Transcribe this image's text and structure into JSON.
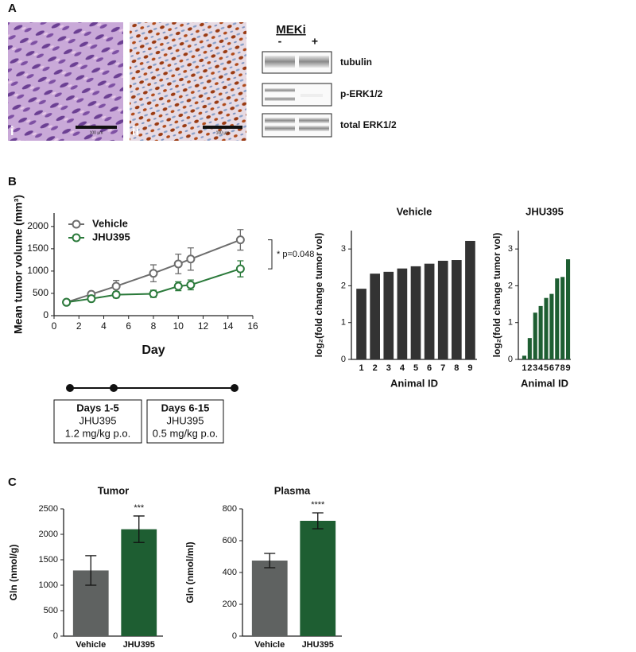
{
  "panel_labels": [
    "A",
    "B",
    "C"
  ],
  "panel_a": {
    "image_labels": [
      "i",
      "ii"
    ],
    "scale_bar": "100 µm",
    "blot": {
      "title": "MEKi",
      "lanes": [
        "-",
        "+"
      ],
      "rows": [
        "tubulin",
        "p-ERK1/2",
        "total ERK1/2"
      ]
    }
  },
  "dosing": {
    "phases": [
      {
        "days": "Days 1-5",
        "drug": "JHU395",
        "dose": "1.2 mg/kg p.o."
      },
      {
        "days": "Days 6-15",
        "drug": "JHU395",
        "dose": "0.5 mg/kg p.o."
      }
    ]
  },
  "chart_data": [
    {
      "type": "line",
      "x_label": "Day",
      "y_label": "Mean tumor volume (mm³)",
      "x": [
        1,
        3,
        5,
        8,
        10,
        11,
        15
      ],
      "series": [
        {
          "name": "Vehicle",
          "color": "#6d6d6d",
          "values": [
            300,
            480,
            660,
            950,
            1160,
            1270,
            1700
          ],
          "errors": [
            20,
            50,
            130,
            190,
            220,
            250,
            230
          ]
        },
        {
          "name": "JHU395",
          "color": "#2b7a3b",
          "values": [
            300,
            380,
            470,
            490,
            660,
            690,
            1050
          ],
          "errors": [
            20,
            40,
            70,
            80,
            100,
            110,
            180
          ]
        }
      ],
      "xlim": [
        0,
        16
      ],
      "xticks": [
        0,
        2,
        4,
        6,
        8,
        10,
        12,
        14,
        16
      ],
      "ylim": [
        0,
        2300
      ],
      "yticks": [
        0,
        500,
        1000,
        1500,
        2000
      ],
      "annotations": [
        "* p=0.048"
      ]
    },
    {
      "type": "bar",
      "title": "Vehicle",
      "x_label": "Animal ID",
      "y_label": "log₂(fold change tumor vol)",
      "categories": [
        "1",
        "2",
        "3",
        "4",
        "5",
        "6",
        "7",
        "8",
        "9"
      ],
      "values": [
        1.92,
        2.33,
        2.38,
        2.47,
        2.53,
        2.6,
        2.68,
        2.7,
        3.22
      ],
      "color": "#333333",
      "ylim": [
        0,
        3.5
      ],
      "yticks": [
        0,
        1,
        2,
        3
      ]
    },
    {
      "type": "bar",
      "title": "JHU395",
      "x_label": "Animal ID",
      "y_label": "log₂(fold change tumor vol)",
      "categories": [
        "1",
        "2",
        "3",
        "4",
        "5",
        "6",
        "7",
        "8",
        "9"
      ],
      "values": [
        0.1,
        0.58,
        1.27,
        1.45,
        1.67,
        1.78,
        2.2,
        2.24,
        2.72
      ],
      "color": "#1e5e32",
      "ylim": [
        0,
        3.5
      ],
      "yticks": [
        0,
        1,
        2,
        3
      ]
    },
    {
      "type": "bar",
      "title": "Tumor",
      "y_label": "Gln (nmol/g)",
      "categories": [
        "Vehicle",
        "JHU395"
      ],
      "values": [
        1290,
        2100
      ],
      "errors": [
        290,
        260
      ],
      "colors": [
        "#5f6261",
        "#1e5e32"
      ],
      "ylim": [
        0,
        2500
      ],
      "yticks": [
        0,
        500,
        1000,
        1500,
        2000,
        2500
      ],
      "annotations": [
        "***"
      ]
    },
    {
      "type": "bar",
      "title": "Plasma",
      "y_label": "Gln (nmol/ml)",
      "categories": [
        "Vehicle",
        "JHU395"
      ],
      "values": [
        475,
        725
      ],
      "errors": [
        45,
        50
      ],
      "colors": [
        "#5f6261",
        "#1e5e32"
      ],
      "ylim": [
        0,
        800
      ],
      "yticks": [
        0,
        200,
        400,
        600,
        800
      ],
      "annotations": [
        "****"
      ]
    }
  ]
}
